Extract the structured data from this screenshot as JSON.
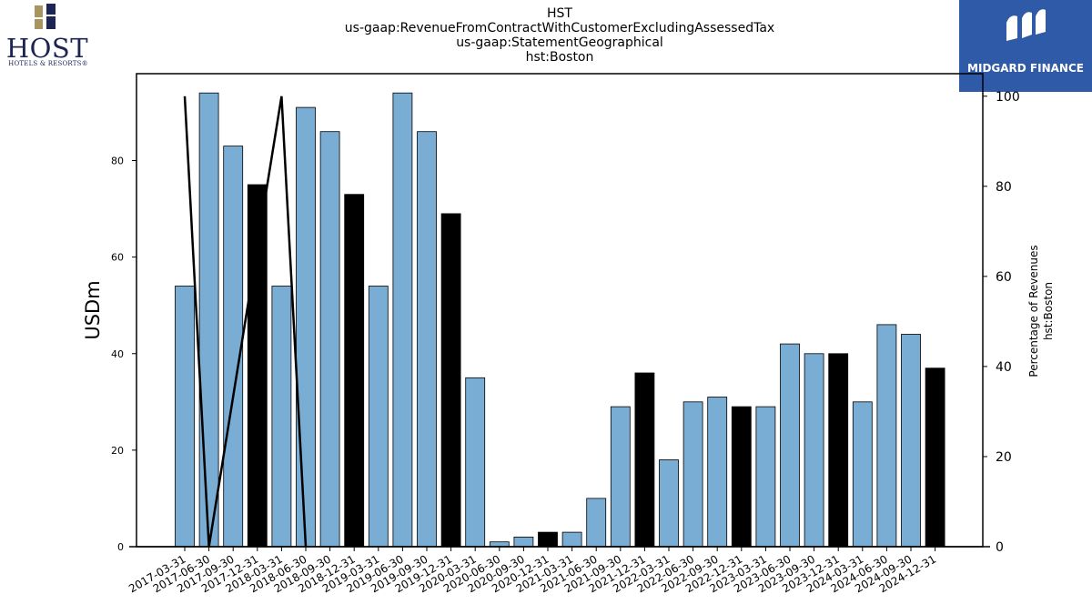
{
  "header": {
    "title_lines": [
      "HST",
      "us-gaap:RevenueFromContractWithCustomerExcludingAssessedTax",
      "us-gaap:StatementGeographical",
      "hst:Boston"
    ]
  },
  "logos": {
    "host_word": "HOST",
    "host_sub": "HOTELS & RESORTS®",
    "midgard_text": "MIDGARD FINANCE"
  },
  "colors": {
    "bar_regular": "#7aadd3",
    "bar_q4": "#000000",
    "line": "#000000",
    "host_navy": "#1d2553",
    "host_gold": "#a8955e",
    "midgard_blue": "#2f5aa8"
  },
  "chart_data": {
    "type": "bar",
    "categories": [
      "2017-03-31",
      "2017-06-30",
      "2017-09-30",
      "2017-12-31",
      "2018-03-31",
      "2018-06-30",
      "2018-09-30",
      "2018-12-31",
      "2019-03-31",
      "2019-06-30",
      "2019-09-30",
      "2019-12-31",
      "2020-03-31",
      "2020-06-30",
      "2020-09-30",
      "2020-12-31",
      "2021-03-31",
      "2021-06-30",
      "2021-09-30",
      "2021-12-31",
      "2022-03-31",
      "2022-06-30",
      "2022-09-30",
      "2022-12-31",
      "2023-03-31",
      "2023-06-30",
      "2023-09-30",
      "2023-12-31",
      "2024-03-31",
      "2024-06-30",
      "2024-09-30",
      "2024-12-31"
    ],
    "values": [
      54,
      94,
      83,
      75,
      54,
      91,
      86,
      73,
      54,
      94,
      86,
      69,
      35,
      1,
      2,
      3,
      3,
      10,
      29,
      36,
      18,
      30,
      31,
      29,
      29,
      42,
      40,
      40,
      30,
      46,
      44,
      37
    ],
    "highlight_q4": [
      false,
      false,
      false,
      true,
      false,
      false,
      false,
      true,
      false,
      false,
      false,
      true,
      false,
      false,
      false,
      true,
      false,
      false,
      false,
      true,
      false,
      false,
      false,
      true,
      false,
      false,
      false,
      true,
      false,
      false,
      false,
      true
    ],
    "line_series": {
      "points": [
        {
          "category": "2017-03-31",
          "value": 100
        },
        {
          "category": "2017-06-30",
          "value": 0
        },
        {
          "category": "2018-03-31",
          "value": 100
        },
        {
          "category": "2018-06-30",
          "value": 0
        }
      ]
    },
    "ylabel": "USDm",
    "y2label_lines": [
      "Percentage of Revenues",
      "hst:Boston"
    ],
    "ylim": [
      0,
      98
    ],
    "y2lim": [
      0,
      105
    ],
    "yticks": [
      0,
      20,
      40,
      60,
      80
    ],
    "y2ticks": [
      0,
      20,
      40,
      60,
      80,
      100
    ],
    "grid": false,
    "legend": "none"
  }
}
